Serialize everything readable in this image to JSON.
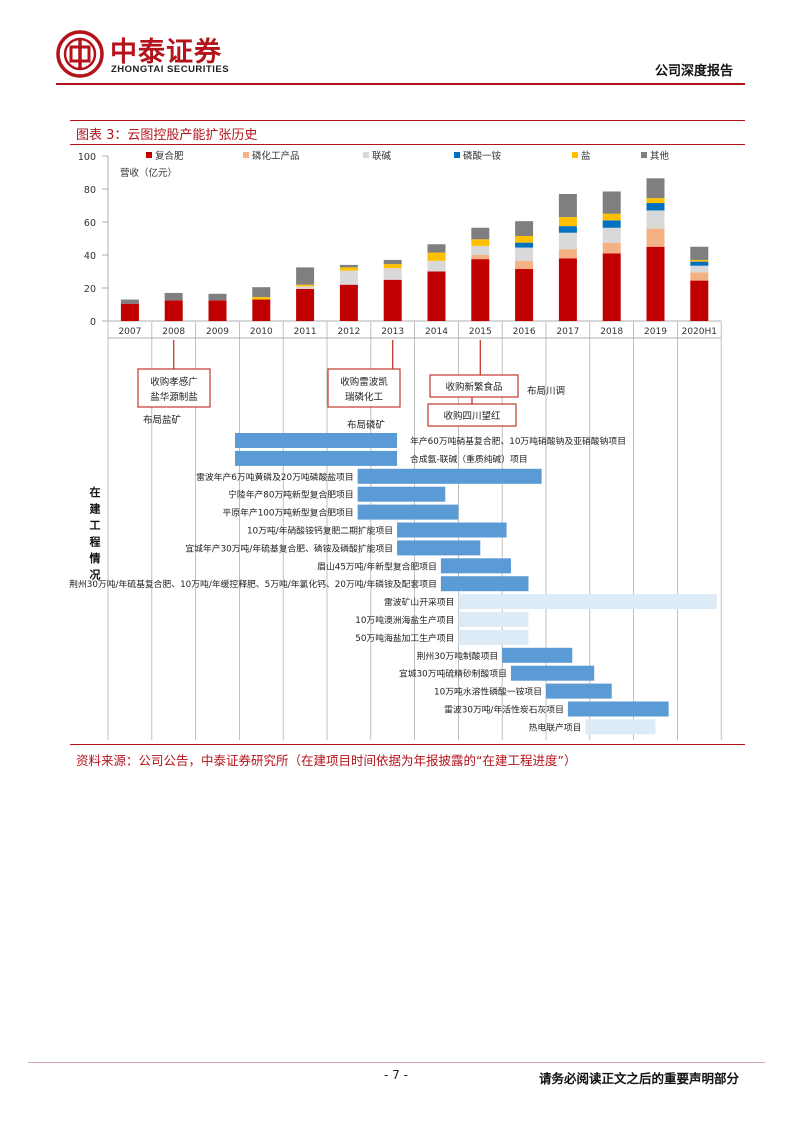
{
  "header": {
    "company_cn": "中泰证券",
    "company_en": "ZHONGTAI SECURITIES",
    "report_type": "公司深度报告"
  },
  "figure": {
    "title": "图表 3：云图控股产能扩张历史",
    "source": "资料来源：公司公告，中泰证券研究所（在建项目时间依据为年报披露的“在建工程进度”）"
  },
  "footer": {
    "page": "- 7 -",
    "disclaimer": "请务必阅读正文之后的重要声明部分"
  },
  "chart_data": {
    "type": "bar",
    "stacked": true,
    "ylabel": "营收（亿元）",
    "ylim": [
      0,
      100
    ],
    "yticks": [
      0,
      20,
      40,
      60,
      80,
      100
    ],
    "legend_position": "top",
    "categories": [
      "2007",
      "2008",
      "2009",
      "2010",
      "2011",
      "2012",
      "2013",
      "2014",
      "2015",
      "2016",
      "2017",
      "2018",
      "2019",
      "2020H1"
    ],
    "series": [
      {
        "name": "复合肥",
        "color": "#c00000",
        "values": [
          10.5,
          12.5,
          12.5,
          13,
          19.5,
          22,
          25,
          30,
          37.5,
          31.5,
          38,
          41,
          45,
          24.5
        ]
      },
      {
        "name": "磷化工产品",
        "color": "#f4b183",
        "values": [
          0,
          0,
          0,
          0,
          0,
          0,
          0,
          0,
          2.5,
          5,
          5.5,
          6.5,
          11,
          5
        ]
      },
      {
        "name": "联碱",
        "color": "#d9d9d9",
        "values": [
          0,
          0,
          0,
          0,
          1.5,
          8.5,
          7,
          6.5,
          5.5,
          8,
          10,
          9,
          11,
          4
        ]
      },
      {
        "name": "磷酸一铵",
        "color": "#0070c0",
        "values": [
          0,
          0,
          0,
          0,
          0,
          0,
          0,
          0,
          0,
          3,
          4,
          4.5,
          4.5,
          2.5
        ]
      },
      {
        "name": "盐",
        "color": "#ffc000",
        "values": [
          0,
          0,
          0,
          1.5,
          1,
          2,
          2.5,
          5,
          4,
          4,
          5.5,
          4,
          3,
          1
        ]
      },
      {
        "name": "其他",
        "color": "#7f7f7f",
        "values": [
          2.5,
          4.5,
          4,
          6,
          10.5,
          1.5,
          2.5,
          5,
          7,
          9,
          14,
          13.5,
          12,
          8
        ]
      }
    ],
    "milestones": [
      {
        "year": "2008",
        "label": "收购孝感广盐华源制盐",
        "boxed": true
      },
      {
        "year": "2008",
        "label": "布局盐矿",
        "boxed": false
      },
      {
        "year": "2013",
        "label": "收购雷波凯瑞磷化工",
        "boxed": true
      },
      {
        "year": "2013",
        "label": "布局磷矿",
        "boxed": false
      },
      {
        "year": "2015",
        "label": "收购新繁食品",
        "boxed": true
      },
      {
        "year": "2015",
        "label": "收购四川望红",
        "boxed": true
      },
      {
        "year": "2016",
        "label": "布局川调",
        "boxed": false
      }
    ],
    "projects_section_label": "在建工程情况",
    "projects": [
      {
        "name": "年产60万吨硝基复合肥、10万吨硝酸钠及亚硝酸钠项目",
        "start": 2009.9,
        "end": 2013.6,
        "style": "dark",
        "label_side": "right"
      },
      {
        "name": "合成氨-联碱（重质纯碱）项目",
        "start": 2009.9,
        "end": 2013.6,
        "style": "dark",
        "label_side": "right"
      },
      {
        "name": "雷波年产6万吨黄磷及20万吨磷酸盐项目",
        "start": 2012.7,
        "end": 2016.9,
        "style": "dark",
        "label_side": "left"
      },
      {
        "name": "宁陵年产80万吨新型复合肥项目",
        "start": 2012.7,
        "end": 2014.7,
        "style": "dark",
        "label_side": "left"
      },
      {
        "name": "平原年产100万吨新型复合肥项目",
        "start": 2012.7,
        "end": 2015.0,
        "style": "dark",
        "label_side": "left"
      },
      {
        "name": "10万吨/年硝酸铵钙复肥二期扩能项目",
        "start": 2013.6,
        "end": 2016.1,
        "style": "dark",
        "label_side": "left"
      },
      {
        "name": "宜城年产30万吨/年硫基复合肥、磷铵及磷酸扩能项目",
        "start": 2013.6,
        "end": 2015.5,
        "style": "dark",
        "label_side": "left"
      },
      {
        "name": "眉山45万吨/年新型复合肥项目",
        "start": 2014.6,
        "end": 2016.2,
        "style": "dark",
        "label_side": "left"
      },
      {
        "name": "荆州30万吨/年硫基复合肥、10万吨/年缓控释肥、5万吨/年氯化钙、20万吨/年磷铵及配套项目",
        "start": 2014.6,
        "end": 2016.6,
        "style": "dark",
        "label_side": "left"
      },
      {
        "name": "雷波矿山开采项目",
        "start": 2015.0,
        "end": 2020.9,
        "style": "light",
        "label_side": "left"
      },
      {
        "name": "10万吨澳洲海盐生产项目",
        "start": 2015.0,
        "end": 2016.6,
        "style": "light",
        "label_side": "left"
      },
      {
        "name": "50万吨海盐加工生产项目",
        "start": 2015.0,
        "end": 2016.6,
        "style": "light",
        "label_side": "left"
      },
      {
        "name": "荆州30万吨制酸项目",
        "start": 2016.0,
        "end": 2017.6,
        "style": "dark",
        "label_side": "left"
      },
      {
        "name": "宜城30万吨硫精砂制酸项目",
        "start": 2016.2,
        "end": 2018.1,
        "style": "dark",
        "label_side": "left"
      },
      {
        "name": "10万吨水溶性磷酸一铵项目",
        "start": 2017.0,
        "end": 2018.5,
        "style": "dark",
        "label_side": "left"
      },
      {
        "name": "雷波30万吨/年活性炭石灰项目",
        "start": 2017.5,
        "end": 2019.8,
        "style": "dark",
        "label_side": "left"
      },
      {
        "name": "热电联产项目",
        "start": 2017.9,
        "end": 2019.5,
        "style": "light",
        "label_side": "left"
      }
    ]
  }
}
